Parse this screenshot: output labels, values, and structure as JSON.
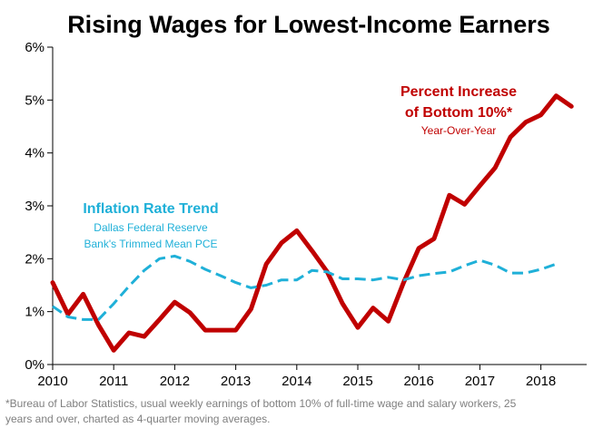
{
  "colors": {
    "wage_series": "#c00000",
    "inflation_series": "#1fb0d8",
    "axis": "#000000",
    "footnote": "#7f7f7f"
  },
  "chart_data": {
    "type": "line",
    "title": "Rising Wages for Lowest-Income Earners",
    "xlabel": "",
    "ylabel": "",
    "xlim": [
      2010,
      2018.75
    ],
    "ylim": [
      0,
      6
    ],
    "x_ticks": [
      2010,
      2011,
      2012,
      2013,
      2014,
      2015,
      2016,
      2017,
      2018
    ],
    "x_tick_labels": [
      "2010",
      "2011",
      "2012",
      "2013",
      "2014",
      "2015",
      "2016",
      "2017",
      "2018"
    ],
    "y_ticks": [
      0,
      1,
      2,
      3,
      4,
      5,
      6
    ],
    "y_tick_labels": [
      "0%",
      "1%",
      "2%",
      "3%",
      "4%",
      "5%",
      "6%"
    ],
    "grid": false,
    "series": [
      {
        "name": "Percent Increase of Bottom 10%*",
        "style": "solid",
        "x": [
          2010.0,
          2010.25,
          2010.5,
          2010.75,
          2011.0,
          2011.25,
          2011.5,
          2011.75,
          2012.0,
          2012.25,
          2012.5,
          2012.75,
          2013.0,
          2013.25,
          2013.5,
          2013.75,
          2014.0,
          2014.25,
          2014.5,
          2014.75,
          2015.0,
          2015.25,
          2015.5,
          2015.75,
          2016.0,
          2016.25,
          2016.5,
          2016.75,
          2017.0,
          2017.25,
          2017.5,
          2017.75,
          2018.0,
          2018.25,
          2018.5
        ],
        "values": [
          1.55,
          0.95,
          1.33,
          0.75,
          0.27,
          0.6,
          0.53,
          0.85,
          1.18,
          0.98,
          0.65,
          0.65,
          0.65,
          1.05,
          1.9,
          2.3,
          2.53,
          2.15,
          1.75,
          1.15,
          0.7,
          1.07,
          0.82,
          1.55,
          2.2,
          2.38,
          3.2,
          3.03,
          3.38,
          3.72,
          4.3,
          4.58,
          4.72,
          5.08,
          4.88
        ]
      },
      {
        "name": "Inflation Rate Trend",
        "style": "dashed",
        "x": [
          2010.0,
          2010.25,
          2010.5,
          2010.75,
          2011.0,
          2011.25,
          2011.5,
          2011.75,
          2012.0,
          2012.25,
          2012.5,
          2012.75,
          2013.0,
          2013.25,
          2013.5,
          2013.75,
          2014.0,
          2014.25,
          2014.5,
          2014.75,
          2015.0,
          2015.25,
          2015.5,
          2015.75,
          2016.0,
          2016.25,
          2016.5,
          2016.75,
          2017.0,
          2017.25,
          2017.5,
          2017.75,
          2018.0,
          2018.25
        ],
        "values": [
          1.1,
          0.9,
          0.85,
          0.85,
          1.15,
          1.48,
          1.78,
          2.0,
          2.05,
          1.95,
          1.8,
          1.68,
          1.55,
          1.45,
          1.5,
          1.6,
          1.6,
          1.78,
          1.75,
          1.62,
          1.62,
          1.6,
          1.65,
          1.6,
          1.68,
          1.72,
          1.75,
          1.87,
          1.97,
          1.88,
          1.73,
          1.73,
          1.8,
          1.9
        ]
      }
    ],
    "annotations": {
      "wage_title_line1": "Percent Increase",
      "wage_title_line2": "of Bottom 10%*",
      "wage_subtitle": "Year-Over-Year",
      "inflation_title": "Inflation Rate Trend",
      "inflation_sub_line1": "Dallas Federal Reserve",
      "inflation_sub_line2": "Bank's Trimmed Mean PCE"
    },
    "footnote_line1": "*Bureau of Labor Statistics, usual weekly earnings of bottom 10% of full-time wage and salary workers, 25",
    "footnote_line2": "years and over, charted as 4-quarter moving averages."
  }
}
